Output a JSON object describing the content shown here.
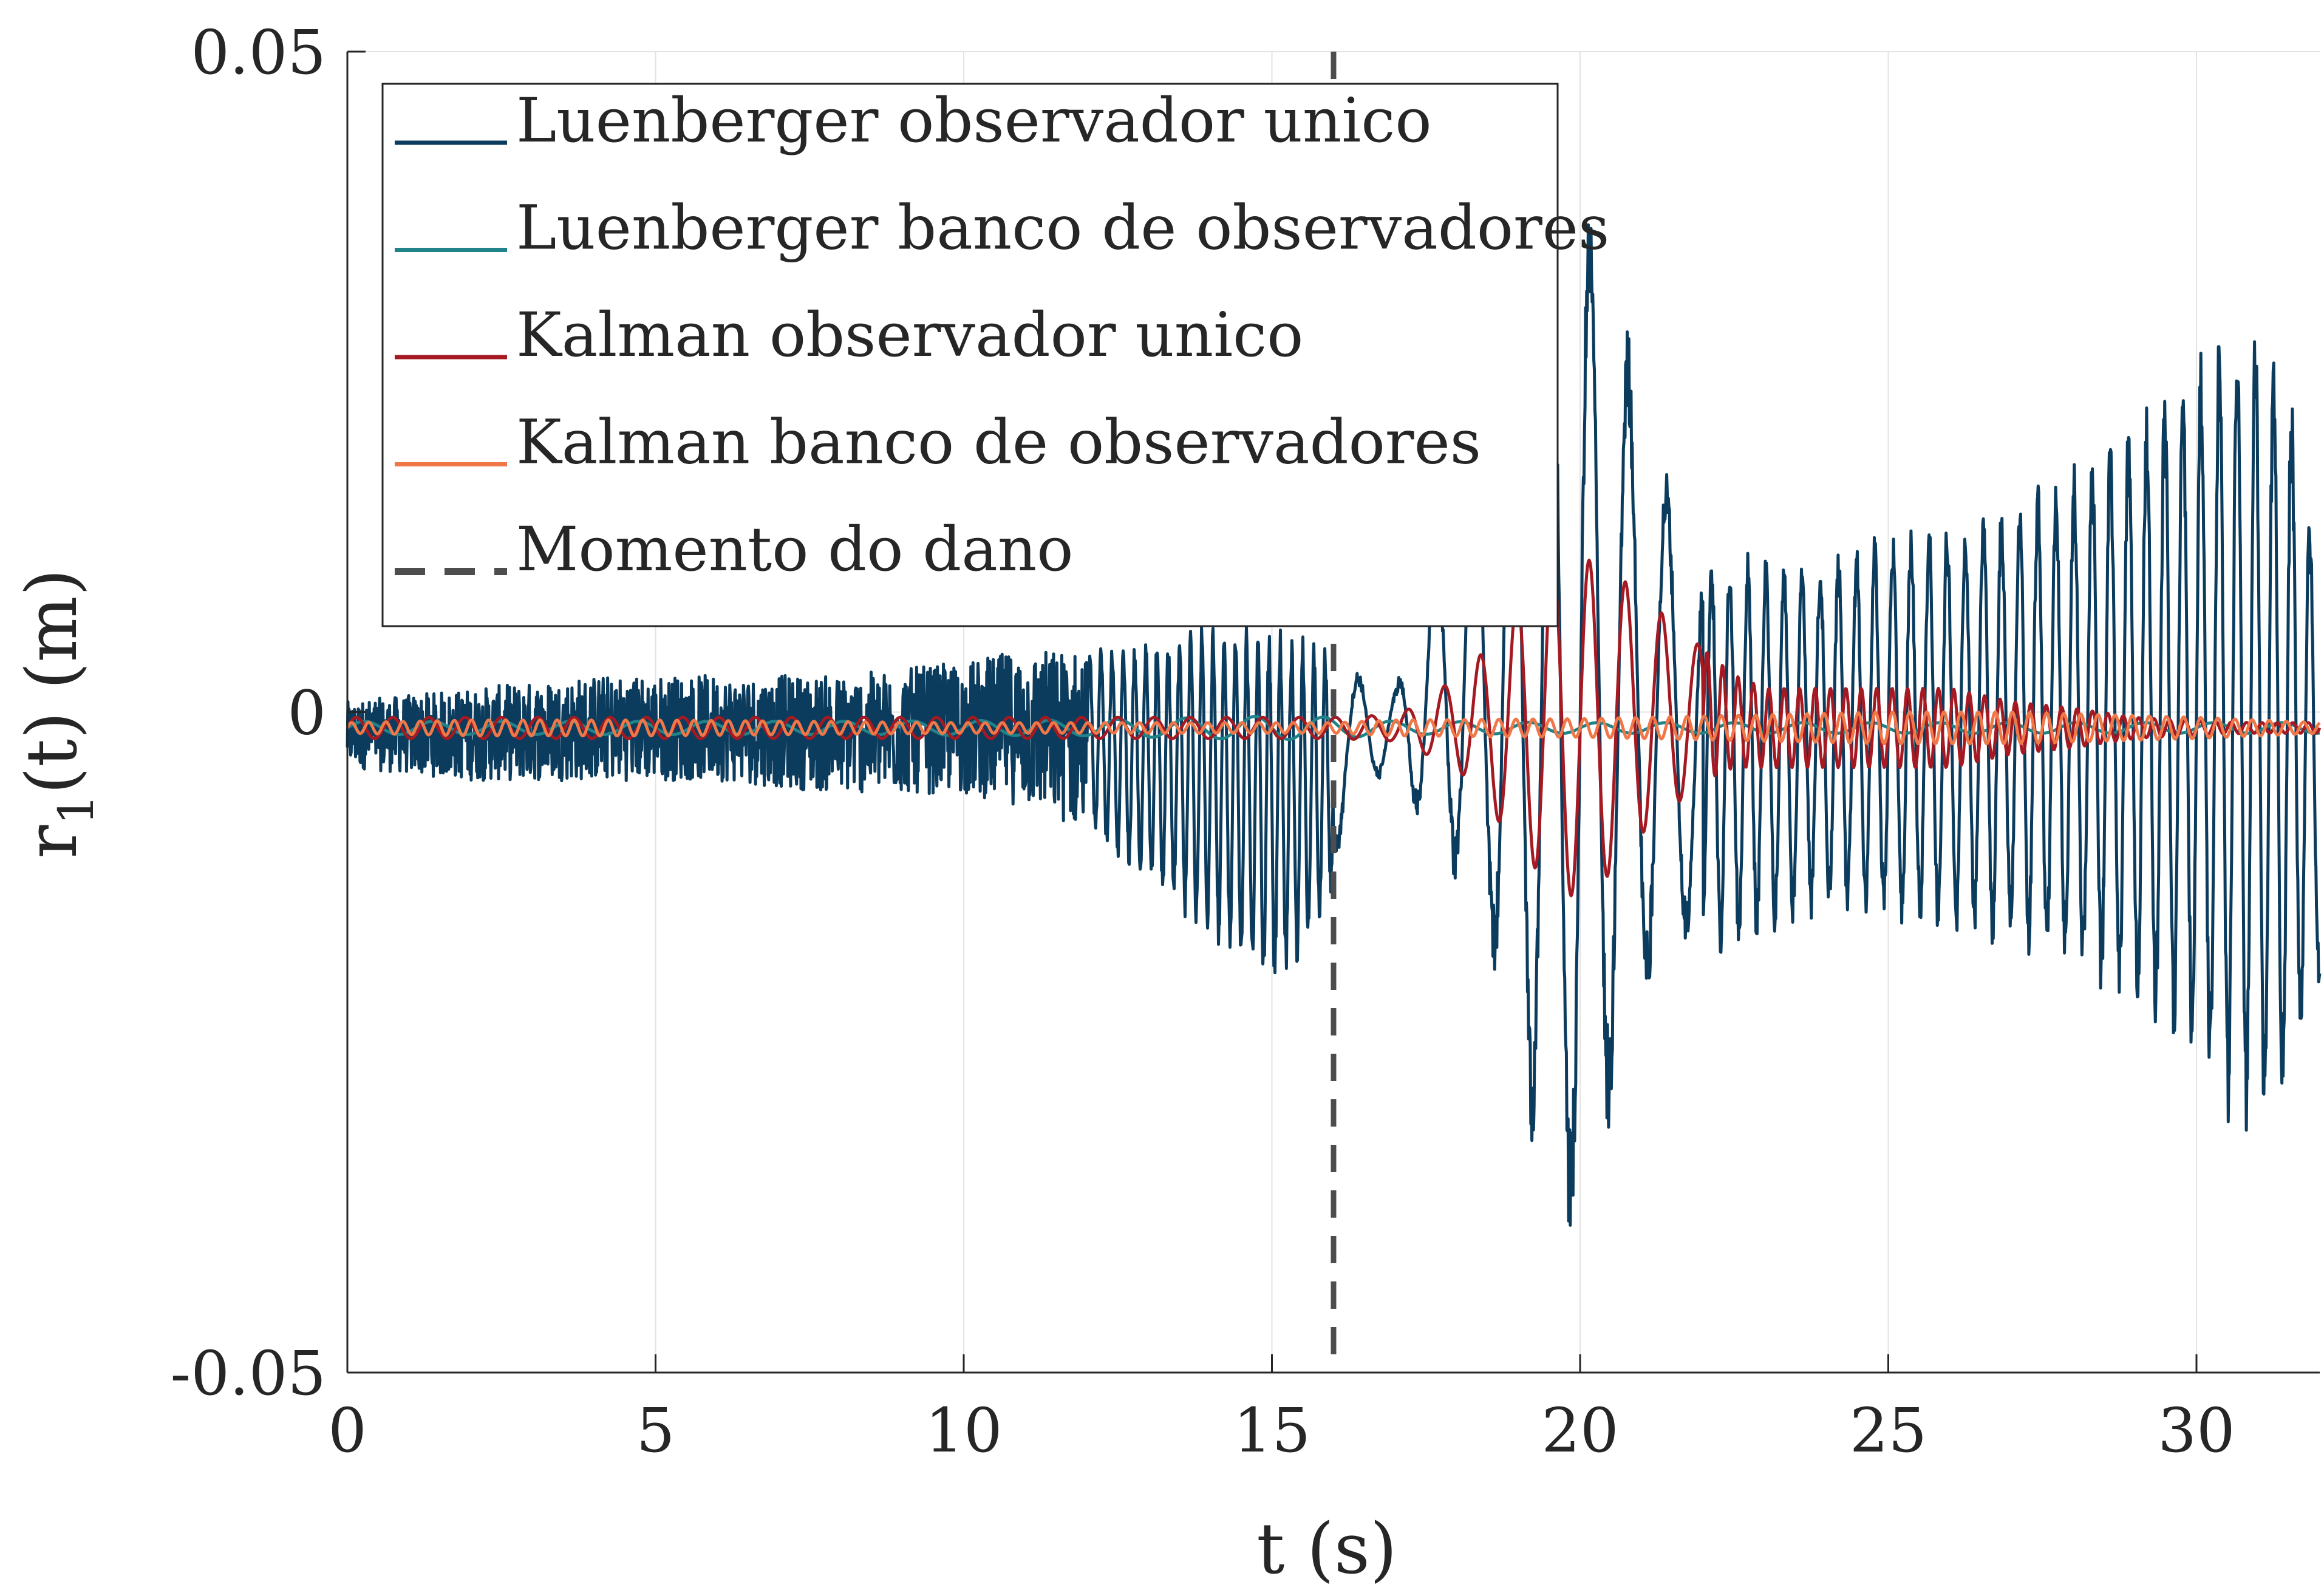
{
  "chart_data": {
    "type": "line",
    "xlabel": "t (s)",
    "ylabel": "r",
    "ylabel_sub": "1",
    "ylabel_tail": "(t) (m)",
    "xlim": [
      0,
      32
    ],
    "ylim": [
      -0.05,
      0.05
    ],
    "xticks": [
      0,
      5,
      10,
      15,
      20,
      25,
      30
    ],
    "xtick_labels": [
      "0",
      "5",
      "10",
      "15",
      "20",
      "25",
      "30"
    ],
    "yticks": [
      -0.05,
      0,
      0.05
    ],
    "ytick_labels": [
      "-0.05",
      "0",
      "0.05"
    ],
    "grid": true,
    "legend_position": "top-left",
    "damage_time": 16,
    "series": [
      {
        "name": "Luenberger observador unico",
        "color": "#0b3c5d",
        "style": "solid",
        "envelope": {
          "t": [
            0,
            2,
            4,
            6,
            8,
            10,
            11,
            12,
            13,
            14,
            14.5,
            15,
            15.5,
            16,
            16.2,
            16.5,
            17,
            17.5,
            18,
            18.5,
            19,
            19.5,
            20,
            20.5,
            21,
            21.5,
            22,
            23,
            24,
            25,
            26,
            27,
            28,
            29,
            30,
            30.5,
            31,
            31.5,
            32
          ],
          "min": [
            -0.003,
            -0.004,
            -0.004,
            -0.004,
            -0.005,
            -0.005,
            -0.006,
            -0.008,
            -0.012,
            -0.016,
            -0.018,
            -0.02,
            -0.018,
            -0.012,
            -0.006,
            -0.004,
            -0.004,
            -0.008,
            -0.012,
            -0.017,
            -0.028,
            -0.036,
            -0.042,
            -0.03,
            -0.022,
            -0.016,
            -0.018,
            -0.016,
            -0.014,
            -0.015,
            -0.016,
            -0.017,
            -0.019,
            -0.022,
            -0.026,
            -0.03,
            -0.031,
            -0.028,
            -0.02
          ],
          "max": [
            0.002,
            0.003,
            0.004,
            0.004,
            0.004,
            0.005,
            0.006,
            0.006,
            0.007,
            0.008,
            0.008,
            0.008,
            0.007,
            0.006,
            0.005,
            0.004,
            0.003,
            0.012,
            0.02,
            0.026,
            0.034,
            0.039,
            0.042,
            0.036,
            0.026,
            0.018,
            0.014,
            0.013,
            0.013,
            0.015,
            0.016,
            0.018,
            0.02,
            0.024,
            0.028,
            0.031,
            0.031,
            0.027,
            0.012
          ]
        }
      },
      {
        "name": "Luenberger banco de observadores",
        "color": "#1f8389",
        "style": "solid",
        "envelope": {
          "t": [
            0,
            8,
            12,
            14,
            15,
            16,
            17,
            20,
            25,
            30,
            32
          ],
          "min": [
            -0.0005,
            -0.0005,
            -0.0006,
            -0.0008,
            -0.0009,
            -0.0008,
            -0.0005,
            -0.0004,
            -0.0004,
            -0.0004,
            -0.0004
          ],
          "max": [
            0.0005,
            0.0005,
            0.0006,
            0.0008,
            0.0009,
            0.0008,
            0.0005,
            0.0004,
            0.0004,
            0.0004,
            0.0004
          ]
        }
      },
      {
        "name": "Kalman observador unico",
        "color": "#a51a22",
        "style": "solid",
        "envelope": {
          "t": [
            0,
            15,
            16,
            17,
            17.5,
            18,
            18.5,
            19,
            19.5,
            20,
            20.5,
            21,
            21.5,
            22,
            22.5,
            23,
            24,
            25,
            26,
            27,
            28,
            29,
            30,
            31,
            32
          ],
          "min": [
            -0.0008,
            -0.0008,
            -0.0008,
            -0.001,
            -0.002,
            -0.003,
            -0.006,
            -0.009,
            -0.012,
            -0.013,
            -0.011,
            -0.008,
            -0.006,
            -0.004,
            -0.003,
            -0.003,
            -0.003,
            -0.003,
            -0.003,
            -0.002,
            -0.0015,
            -0.0008,
            -0.0005,
            -0.0004,
            -0.0004
          ],
          "max": [
            0.0008,
            0.0008,
            0.0008,
            0.001,
            0.002,
            0.004,
            0.006,
            0.01,
            0.013,
            0.013,
            0.012,
            0.01,
            0.008,
            0.006,
            0.004,
            0.003,
            0.003,
            0.003,
            0.003,
            0.002,
            0.0015,
            0.0008,
            0.0005,
            0.0004,
            0.0004
          ]
        }
      },
      {
        "name": "Kalman banco de observadores",
        "color": "#f07848",
        "style": "solid",
        "envelope": {
          "t": [
            0,
            2,
            5,
            10,
            15,
            16,
            17,
            20,
            25,
            27,
            30,
            32
          ],
          "min": [
            -0.0004,
            -0.0006,
            -0.0006,
            -0.0004,
            -0.0004,
            -0.0004,
            -0.0006,
            -0.0007,
            -0.0012,
            -0.0012,
            -0.0008,
            -0.0004
          ],
          "max": [
            0.0004,
            0.0006,
            0.0006,
            0.0004,
            0.0004,
            0.0004,
            0.0006,
            0.0007,
            0.0012,
            0.0012,
            0.0008,
            0.0004
          ]
        }
      },
      {
        "name": "Momento do dano",
        "color": "#4d4d4d",
        "style": "dashed"
      }
    ]
  }
}
